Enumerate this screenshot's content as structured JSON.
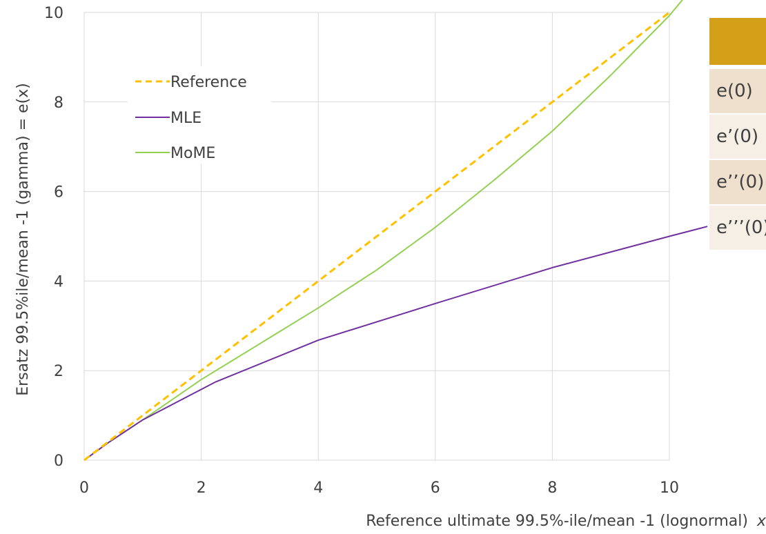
{
  "chart_data": {
    "type": "line",
    "xlabel": "Reference ultimate 99.5%-ile/mean -1  (lognormal)",
    "xlabel_var": "x",
    "ylabel": "Ersatz 99.5%ile/mean -1 (gamma) = e(x)",
    "xlim": [
      0,
      10
    ],
    "ylim": [
      0,
      10
    ],
    "x_ticks": [
      0,
      2,
      4,
      6,
      8,
      10
    ],
    "y_ticks": [
      0,
      2,
      4,
      6,
      8,
      10
    ],
    "x_tick_labels": [
      "0",
      "2",
      "4",
      "6",
      "8",
      "10"
    ],
    "y_tick_labels": [
      "0",
      "2",
      "4",
      "6",
      "8",
      "10"
    ],
    "grid": true,
    "legend_position": "upper-left",
    "series": [
      {
        "name": "Reference",
        "style": "dashed",
        "color": "#FFC000",
        "points": [
          [
            0,
            0
          ],
          [
            0.4,
            0.4
          ],
          [
            2,
            2
          ],
          [
            4,
            4
          ],
          [
            6,
            6
          ],
          [
            8,
            8
          ],
          [
            10,
            10
          ]
        ]
      },
      {
        "name": "MLE",
        "style": "solid",
        "color": "#7030A0",
        "points": [
          [
            0,
            0
          ],
          [
            0.4,
            0.38
          ],
          [
            1,
            0.9
          ],
          [
            2.25,
            1.75
          ],
          [
            4,
            2.68
          ],
          [
            6,
            3.5
          ],
          [
            8,
            4.3
          ],
          [
            10,
            5.0
          ],
          [
            10.65,
            5.22
          ]
        ]
      },
      {
        "name": "MoME",
        "style": "solid",
        "color": "#92D050",
        "points": [
          [
            0,
            0
          ],
          [
            0.4,
            0.38
          ],
          [
            1,
            0.9
          ],
          [
            2,
            1.8
          ],
          [
            3,
            2.6
          ],
          [
            4,
            3.4
          ],
          [
            5,
            4.25
          ],
          [
            6,
            5.2
          ],
          [
            7,
            6.25
          ],
          [
            8,
            7.35
          ],
          [
            9,
            8.6
          ],
          [
            10,
            9.93
          ],
          [
            10.3,
            10.4
          ]
        ]
      }
    ]
  },
  "side_table": {
    "header_color": "#D4A017",
    "rows": [
      {
        "label": "e(0)",
        "bg": "#EFE0CE"
      },
      {
        "label": "e’(0)",
        "bg": "#F6EFE6"
      },
      {
        "label": "e’’(0)",
        "bg": "#EFE0CE"
      },
      {
        "label": "e’’’(0)",
        "bg": "#F6EFE6"
      }
    ]
  }
}
